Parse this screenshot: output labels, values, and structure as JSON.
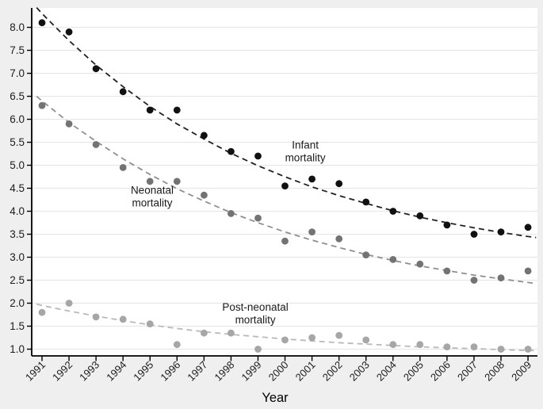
{
  "figure": {
    "background": "#efefef",
    "plot_background": "#ffffff",
    "grid_color": "#e7e7e7",
    "axis_color": "#000000",
    "tick_label_color": "#1c1c1c"
  },
  "chart_data": {
    "type": "scatter",
    "title": "",
    "xlabel": "Year",
    "ylabel": "",
    "grid": true,
    "legend_position": "inline-annotations",
    "x": [
      1991,
      1992,
      1993,
      1994,
      1995,
      1996,
      1997,
      1998,
      1999,
      2000,
      2001,
      2002,
      2003,
      2004,
      2005,
      2006,
      2007,
      2008,
      2009
    ],
    "x_tick_labels": [
      "1991",
      "1992",
      "1993",
      "1994",
      "1995",
      "1996",
      "1997",
      "1998",
      "1999",
      "2000",
      "2001",
      "2002",
      "2003",
      "2004",
      "2005",
      "2006",
      "2007",
      "2008",
      "2009"
    ],
    "y_ticks": [
      8.0,
      7.5,
      7.0,
      6.5,
      6.0,
      5.5,
      5.0,
      4.5,
      4.0,
      3.5,
      3.0,
      2.5,
      2.0,
      1.5,
      1.0
    ],
    "y_tick_labels": [
      "8.0",
      "7.5",
      "7.0",
      "6.5",
      "6.0",
      "5.5",
      "5.0",
      "4.5",
      "4.0",
      "3.5",
      "3.0",
      "2.5",
      "2.0",
      "1.5",
      "1.0"
    ],
    "ylim": [
      0.8,
      8.45
    ],
    "trend_x": [
      1990.8,
      1991,
      1992,
      1993,
      1994,
      1995,
      1996,
      1997,
      1998,
      1999,
      2000,
      2001,
      2002,
      2003,
      2004,
      2005,
      2006,
      2007,
      2008,
      2009,
      2009.3
    ],
    "series": [
      {
        "name": "Infant mortality",
        "annotation_lines": [
          "Infant",
          "mortality"
        ],
        "annotation_anchor": {
          "year": 2000.75,
          "value": 5.3
        },
        "dot_color": "#111111",
        "line_color": "#222222",
        "line_style": "dashed",
        "values": [
          8.1,
          7.9,
          7.1,
          6.6,
          6.2,
          6.2,
          5.65,
          5.3,
          5.2,
          4.55,
          4.7,
          4.6,
          4.2,
          4.0,
          3.9,
          3.7,
          3.5,
          3.55,
          3.65
        ],
        "trend_values": [
          8.43,
          8.3,
          7.71,
          7.18,
          6.71,
          6.28,
          5.9,
          5.57,
          5.26,
          4.99,
          4.75,
          4.53,
          4.34,
          4.17,
          4.01,
          3.87,
          3.75,
          3.64,
          3.54,
          3.45,
          3.43
        ]
      },
      {
        "name": "Neonatal mortality",
        "annotation_lines": [
          "Neonatal",
          "mortality"
        ],
        "annotation_anchor": {
          "year": 1995.08,
          "value": 4.32
        },
        "dot_color": "#737373",
        "line_color": "#8f8f8f",
        "line_style": "dashed",
        "values": [
          6.3,
          5.9,
          5.45,
          4.95,
          4.65,
          4.65,
          4.35,
          3.95,
          3.85,
          3.35,
          3.55,
          3.4,
          3.05,
          2.95,
          2.85,
          2.7,
          2.5,
          2.55,
          2.7
        ],
        "trend_values": [
          6.5,
          6.4,
          5.93,
          5.52,
          5.14,
          4.8,
          4.49,
          4.22,
          3.97,
          3.75,
          3.55,
          3.37,
          3.21,
          3.06,
          2.93,
          2.81,
          2.71,
          2.61,
          2.53,
          2.45,
          2.43
        ]
      },
      {
        "name": "Post-neonatal mortality",
        "annotation_lines": [
          "Post-neonatal",
          "mortality"
        ],
        "annotation_anchor": {
          "year": 1998.9,
          "value": 1.78
        },
        "dot_color": "#a6a6a6",
        "line_color": "#b9b9b9",
        "line_style": "dashed",
        "values": [
          1.8,
          2.0,
          1.7,
          1.65,
          1.55,
          1.1,
          1.35,
          1.35,
          1.0,
          1.2,
          1.25,
          1.3,
          1.2,
          1.1,
          1.1,
          1.05,
          1.05,
          1.0,
          1.0
        ],
        "trend_values": [
          1.98,
          1.95,
          1.83,
          1.72,
          1.62,
          1.53,
          1.45,
          1.38,
          1.32,
          1.27,
          1.22,
          1.18,
          1.14,
          1.11,
          1.08,
          1.05,
          1.03,
          1.01,
          0.99,
          0.97,
          0.97
        ]
      }
    ]
  }
}
